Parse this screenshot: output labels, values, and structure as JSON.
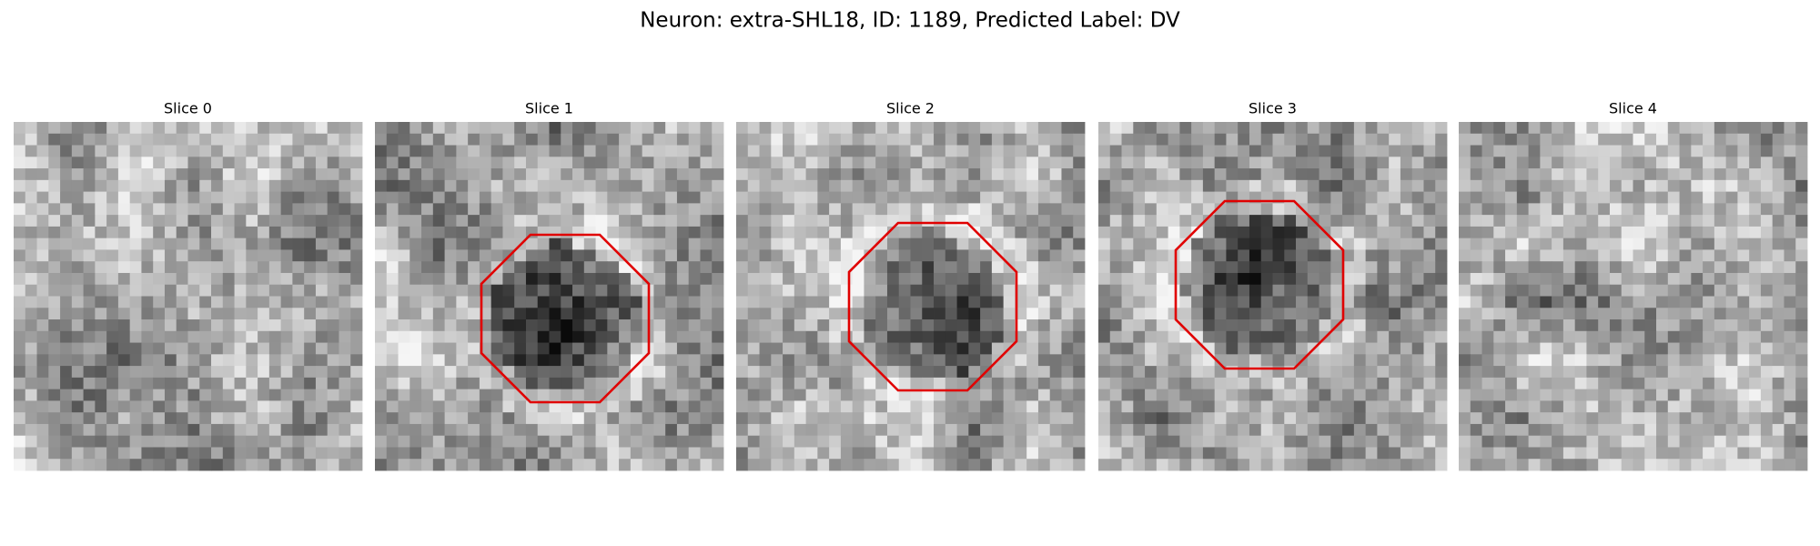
{
  "header": {
    "title": "Neuron: extra-SHL18, ID: 1189, Predicted Label: DV"
  },
  "panels": [
    {
      "title": "Slice 0"
    },
    {
      "title": "Slice 1"
    },
    {
      "title": "Slice 2"
    },
    {
      "title": "Slice 3"
    },
    {
      "title": "Slice 4"
    }
  ]
}
